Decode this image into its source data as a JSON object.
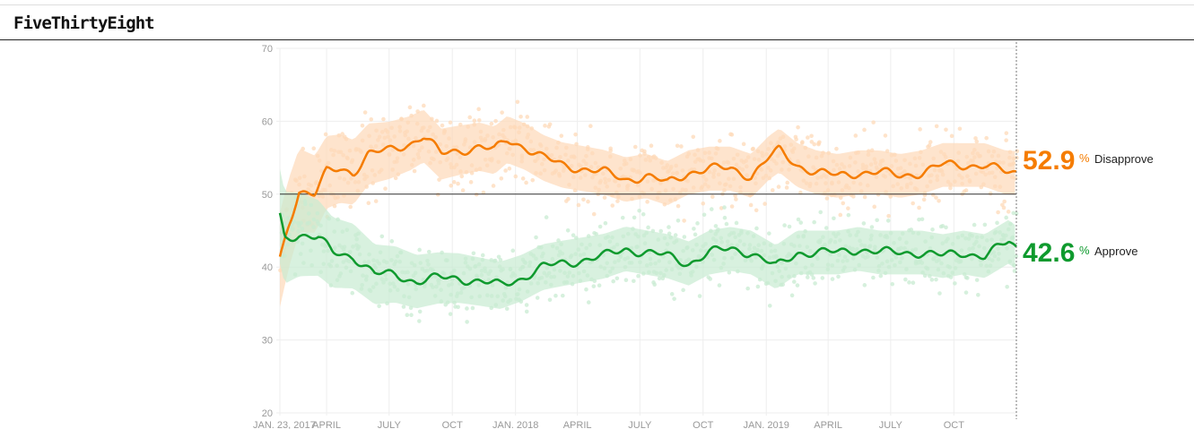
{
  "header": {
    "logo": "FiveThirtyEight"
  },
  "colors": {
    "disapprove": "#f57c00",
    "approve": "#0f9a2e",
    "disapprove_band": "#fdd9b8",
    "approve_band": "#c8ebd1"
  },
  "current": {
    "disapprove": {
      "value": "52.9",
      "unit": "%",
      "label": "Disapprove"
    },
    "approve": {
      "value": "42.6",
      "unit": "%",
      "label": "Approve"
    }
  },
  "chart_data": {
    "type": "line",
    "ylim": [
      20,
      70
    ],
    "yticks": [
      "20",
      "30",
      "40",
      "50",
      "60",
      "70"
    ],
    "xlim": [
      "2017-01-23",
      "2019-12-31"
    ],
    "xticks": [
      {
        "date": "2017-01-23",
        "label": "JAN. 23, 2017"
      },
      {
        "date": "2017-04-01",
        "label": "APRIL"
      },
      {
        "date": "2017-07-01",
        "label": "JULY"
      },
      {
        "date": "2017-10-01",
        "label": "OCT"
      },
      {
        "date": "2018-01-01",
        "label": "JAN. 2018"
      },
      {
        "date": "2018-04-01",
        "label": "APRIL"
      },
      {
        "date": "2018-07-01",
        "label": "JULY"
      },
      {
        "date": "2018-10-01",
        "label": "OCT"
      },
      {
        "date": "2019-01-01",
        "label": "JAN. 2019"
      },
      {
        "date": "2019-04-01",
        "label": "APRIL"
      },
      {
        "date": "2019-07-01",
        "label": "JULY"
      },
      {
        "date": "2019-10-01",
        "label": "OCT"
      }
    ],
    "reference_line": 50,
    "grid": true,
    "series": [
      {
        "name": "Disapprove",
        "points": [
          [
            "2017-01-23",
            41
          ],
          [
            "2017-02-05",
            46
          ],
          [
            "2017-02-20",
            50.5
          ],
          [
            "2017-03-15",
            50
          ],
          [
            "2017-04-01",
            53
          ],
          [
            "2017-04-20",
            53.5
          ],
          [
            "2017-05-10",
            53
          ],
          [
            "2017-06-01",
            55.5
          ],
          [
            "2017-07-01",
            56
          ],
          [
            "2017-08-01",
            57
          ],
          [
            "2017-08-20",
            58
          ],
          [
            "2017-09-15",
            55.5
          ],
          [
            "2017-10-10",
            56
          ],
          [
            "2017-11-10",
            56.5
          ],
          [
            "2017-12-01",
            56
          ],
          [
            "2017-12-20",
            57.5
          ],
          [
            "2018-01-15",
            56.5
          ],
          [
            "2018-02-10",
            55
          ],
          [
            "2018-03-10",
            54
          ],
          [
            "2018-04-10",
            53.5
          ],
          [
            "2018-05-10",
            53
          ],
          [
            "2018-06-10",
            52
          ],
          [
            "2018-07-10",
            52.5
          ],
          [
            "2018-08-10",
            51.5
          ],
          [
            "2018-09-10",
            53
          ],
          [
            "2018-10-10",
            53.5
          ],
          [
            "2018-11-10",
            53.5
          ],
          [
            "2018-12-10",
            52.5
          ],
          [
            "2019-01-05",
            55
          ],
          [
            "2019-01-20",
            56
          ],
          [
            "2019-02-15",
            54
          ],
          [
            "2019-03-15",
            53
          ],
          [
            "2019-04-15",
            52.5
          ],
          [
            "2019-05-15",
            53
          ],
          [
            "2019-06-15",
            53
          ],
          [
            "2019-07-15",
            52.5
          ],
          [
            "2019-08-15",
            53
          ],
          [
            "2019-09-15",
            54
          ],
          [
            "2019-10-15",
            54
          ],
          [
            "2019-11-15",
            54
          ],
          [
            "2019-12-15",
            53
          ],
          [
            "2019-12-31",
            52.9
          ]
        ]
      },
      {
        "name": "Approve",
        "points": [
          [
            "2017-01-23",
            47
          ],
          [
            "2017-01-30",
            44
          ],
          [
            "2017-02-20",
            44.5
          ],
          [
            "2017-03-20",
            44
          ],
          [
            "2017-04-10",
            42
          ],
          [
            "2017-05-10",
            41.5
          ],
          [
            "2017-06-10",
            39
          ],
          [
            "2017-07-10",
            39
          ],
          [
            "2017-08-10",
            38
          ],
          [
            "2017-09-10",
            38.5
          ],
          [
            "2017-10-10",
            38.5
          ],
          [
            "2017-11-10",
            38
          ],
          [
            "2017-12-10",
            37.5
          ],
          [
            "2018-01-10",
            38.5
          ],
          [
            "2018-02-10",
            40
          ],
          [
            "2018-03-10",
            40.5
          ],
          [
            "2018-04-10",
            41
          ],
          [
            "2018-05-10",
            41.5
          ],
          [
            "2018-06-10",
            42.5
          ],
          [
            "2018-07-10",
            42
          ],
          [
            "2018-08-10",
            41.5
          ],
          [
            "2018-09-10",
            40.5
          ],
          [
            "2018-10-10",
            42
          ],
          [
            "2018-11-10",
            42.5
          ],
          [
            "2018-12-10",
            42
          ],
          [
            "2019-01-15",
            40
          ],
          [
            "2019-02-15",
            42
          ],
          [
            "2019-03-15",
            42
          ],
          [
            "2019-04-15",
            42
          ],
          [
            "2019-05-15",
            42.5
          ],
          [
            "2019-06-15",
            42
          ],
          [
            "2019-07-15",
            42
          ],
          [
            "2019-08-15",
            42
          ],
          [
            "2019-09-15",
            41.5
          ],
          [
            "2019-10-15",
            42
          ],
          [
            "2019-11-15",
            41.5
          ],
          [
            "2019-12-20",
            43.5
          ],
          [
            "2019-12-31",
            42.6
          ]
        ]
      }
    ]
  }
}
